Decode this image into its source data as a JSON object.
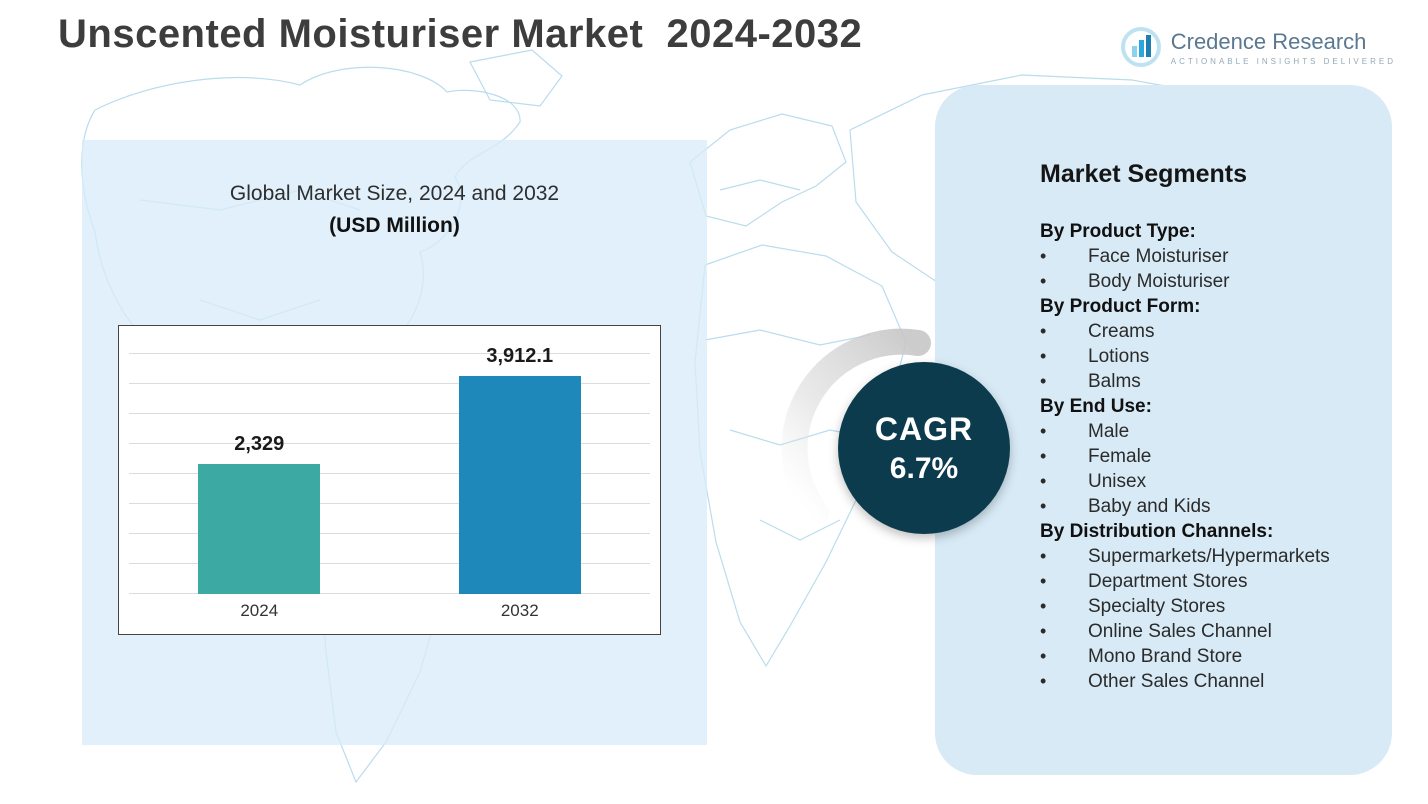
{
  "page": {
    "title": "Unscented Moisturiser Market  2024-2032"
  },
  "logo": {
    "name": "Credence Research",
    "tagline": "Actionable Insights Delivered",
    "accent": "#2aa7df",
    "icon": "bar-chart-logo-icon"
  },
  "chart_data": {
    "type": "bar",
    "title": "Global Market Size, 2024 and 2032",
    "subtitle": "(USD Million)",
    "categories": [
      "2024",
      "2032"
    ],
    "values": [
      2329,
      3912.1
    ],
    "value_labels": [
      "2,329",
      "3,912.1"
    ],
    "bar_colors": [
      "#3caaa3",
      "#1e88bb"
    ],
    "ylabel": "",
    "xlabel": "",
    "ylim": [
      0,
      4300
    ],
    "grid": true,
    "legend": "none"
  },
  "cagr": {
    "label": "CAGR",
    "value": "6.7%",
    "circle_color": "#0c3b4d"
  },
  "segments": {
    "heading": "Market Segments",
    "groups": [
      {
        "label": "By Product Type:",
        "items": [
          "Face Moisturiser",
          "Body Moisturiser"
        ]
      },
      {
        "label": "By Product Form:",
        "items": [
          "Creams",
          "Lotions",
          "Balms"
        ]
      },
      {
        "label": "By End Use:",
        "items": [
          "Male",
          "Female",
          "Unisex",
          "Baby and Kids"
        ]
      },
      {
        "label": "By Distribution Channels:",
        "items": [
          "Supermarkets/Hypermarkets",
          "Department Stores",
          "Specialty Stores",
          "Online Sales Channel",
          "Mono Brand Store",
          "Other Sales Channel"
        ]
      }
    ]
  }
}
